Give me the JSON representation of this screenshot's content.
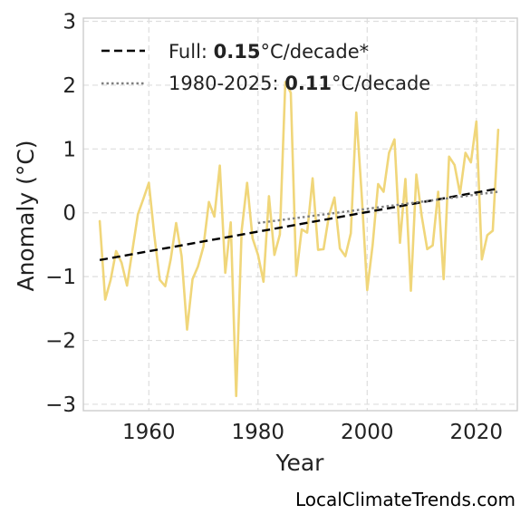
{
  "chart_data": {
    "type": "line",
    "xlabel": "Year",
    "ylabel": "Anomaly (°C)",
    "xlim": [
      1948,
      2027.5
    ],
    "ylim": [
      -3.1,
      3.05
    ],
    "xticks": [
      1960,
      1980,
      2000,
      2020
    ],
    "xtick_labels": [
      "1960",
      "1980",
      "2000",
      "2020"
    ],
    "yticks": [
      -3,
      -2,
      -1,
      0,
      1,
      2,
      3
    ],
    "ytick_labels": [
      "−3",
      "−2",
      "−1",
      "0",
      "1",
      "2",
      "3"
    ],
    "grid": true,
    "legend_position": "top-left",
    "x": [
      1951,
      1952,
      1953,
      1954,
      1955,
      1956,
      1957,
      1958,
      1959,
      1960,
      1961,
      1962,
      1963,
      1964,
      1965,
      1966,
      1967,
      1968,
      1969,
      1970,
      1971,
      1972,
      1973,
      1974,
      1975,
      1976,
      1977,
      1978,
      1979,
      1980,
      1981,
      1982,
      1983,
      1984,
      1985,
      1986,
      1987,
      1988,
      1989,
      1990,
      1991,
      1992,
      1993,
      1994,
      1995,
      1996,
      1997,
      1998,
      1999,
      2000,
      2001,
      2002,
      2003,
      2004,
      2005,
      2006,
      2007,
      2008,
      2009,
      2010,
      2011,
      2012,
      2013,
      2014,
      2015,
      2016,
      2017,
      2018,
      2019,
      2020,
      2021,
      2022,
      2023,
      2024
    ],
    "series": [
      {
        "name": "",
        "color": "#f0d67a",
        "style": "solid",
        "values": [
          -0.13,
          -1.36,
          -1.05,
          -0.6,
          -0.78,
          -1.14,
          -0.58,
          -0.02,
          0.22,
          0.47,
          -0.35,
          -1.05,
          -1.15,
          -0.73,
          -0.16,
          -0.68,
          -1.83,
          -1.04,
          -0.84,
          -0.53,
          0.17,
          -0.06,
          0.74,
          -0.94,
          -0.15,
          -2.87,
          -0.28,
          0.47,
          -0.4,
          -0.66,
          -1.08,
          0.26,
          -0.66,
          -0.34,
          2.05,
          1.88,
          -0.98,
          -0.26,
          -0.31,
          0.54,
          -0.58,
          -0.57,
          -0.04,
          0.24,
          -0.56,
          -0.68,
          -0.32,
          1.57,
          0.27,
          -1.21,
          -0.5,
          0.45,
          0.33,
          0.94,
          1.15,
          -0.47,
          0.53,
          -1.22,
          0.6,
          -0.06,
          -0.57,
          -0.51,
          0.33,
          -1.04,
          0.88,
          0.75,
          0.3,
          0.94,
          0.79,
          1.43,
          -0.73,
          -0.35,
          -0.28,
          1.3
        ]
      },
      {
        "name": "Full: 0.15°C/decade*",
        "color": "#000000",
        "style": "dashed",
        "x": [
          1951,
          2024
        ],
        "values": [
          -0.74,
          0.38
        ]
      },
      {
        "name": "1980-2025: 0.11°C/decade",
        "color": "#808080",
        "style": "dotted",
        "x": [
          1980,
          2024
        ],
        "values": [
          -0.16,
          0.33
        ]
      }
    ]
  },
  "legend": {
    "items": [
      {
        "prefix": "Full: ",
        "value": "0.15",
        "suffix": "°C/decade*",
        "color": "#000000",
        "style": "dashed"
      },
      {
        "prefix": "1980-2025: ",
        "value": "0.11",
        "suffix": "°C/decade",
        "color": "#808080",
        "style": "dotted"
      }
    ]
  },
  "watermark": "LocalClimateTrends.com"
}
